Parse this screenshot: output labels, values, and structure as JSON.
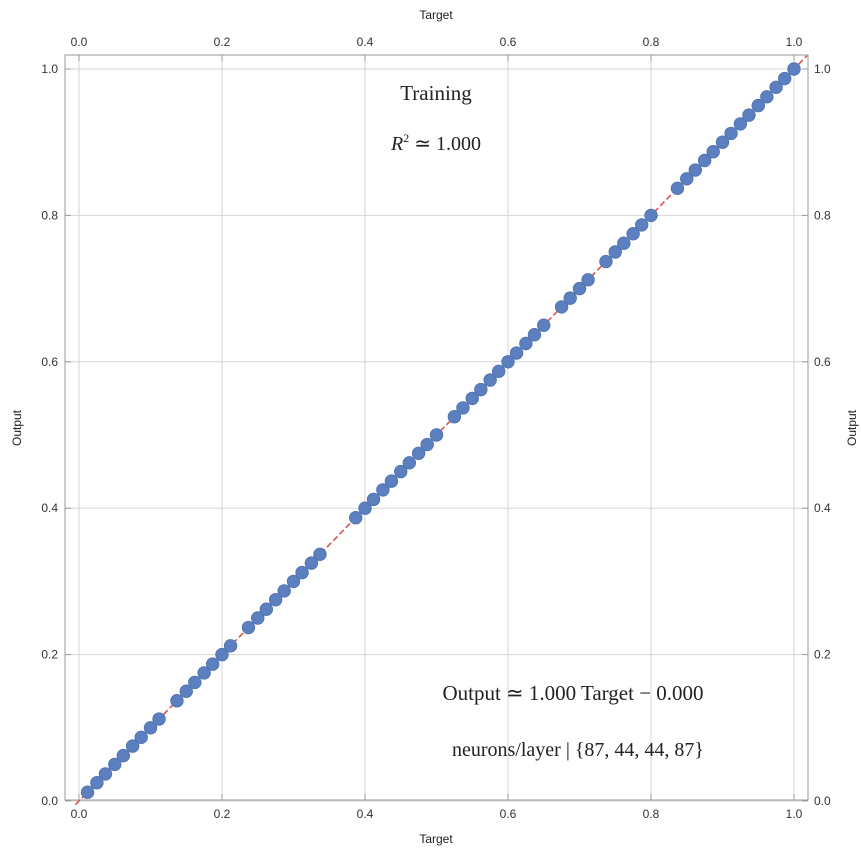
{
  "chart_data": {
    "type": "scatter",
    "xlabel": "Target",
    "ylabel": "Output",
    "xlim": [
      0.0,
      1.0
    ],
    "ylim": [
      0.0,
      1.0
    ],
    "x_ticks": [
      "0.0",
      "0.2",
      "0.4",
      "0.6",
      "0.8",
      "1.0"
    ],
    "y_ticks": [
      "0.0",
      "0.2",
      "0.4",
      "0.6",
      "0.8",
      "1.0"
    ],
    "grid": true,
    "annotations": {
      "title": "Training",
      "r2_symbol": "R",
      "r2_exp": "2",
      "r2_value": " ≃ 1.000",
      "fit": "Output ≃ 1.000 Target − 0.000",
      "layers": "neurons/layer | {87, 44, 44, 87}"
    },
    "colors": {
      "points": "#5b7fbf",
      "fit_line": "#d9534f"
    },
    "fit_line": {
      "slope": 1.0,
      "intercept": 0.0
    },
    "points": {
      "x": [
        0.012,
        0.025,
        0.037,
        0.05,
        0.062,
        0.075,
        0.087,
        0.1,
        0.112,
        0.137,
        0.15,
        0.162,
        0.175,
        0.187,
        0.2,
        0.212,
        0.237,
        0.25,
        0.262,
        0.275,
        0.287,
        0.3,
        0.312,
        0.325,
        0.337,
        0.387,
        0.4,
        0.412,
        0.425,
        0.437,
        0.45,
        0.462,
        0.475,
        0.487,
        0.5,
        0.525,
        0.537,
        0.55,
        0.562,
        0.575,
        0.587,
        0.6,
        0.612,
        0.625,
        0.637,
        0.65,
        0.675,
        0.687,
        0.7,
        0.712,
        0.737,
        0.75,
        0.762,
        0.775,
        0.787,
        0.8,
        0.837,
        0.85,
        0.862,
        0.875,
        0.887,
        0.9,
        0.912,
        0.925,
        0.937,
        0.95,
        0.962,
        0.975,
        0.987,
        1.0
      ],
      "y": [
        0.012,
        0.025,
        0.037,
        0.05,
        0.062,
        0.075,
        0.087,
        0.1,
        0.112,
        0.137,
        0.15,
        0.162,
        0.175,
        0.187,
        0.2,
        0.212,
        0.237,
        0.25,
        0.262,
        0.275,
        0.287,
        0.3,
        0.312,
        0.325,
        0.337,
        0.387,
        0.4,
        0.412,
        0.425,
        0.437,
        0.45,
        0.462,
        0.475,
        0.487,
        0.5,
        0.525,
        0.537,
        0.55,
        0.562,
        0.575,
        0.587,
        0.6,
        0.612,
        0.625,
        0.637,
        0.65,
        0.675,
        0.687,
        0.7,
        0.712,
        0.737,
        0.75,
        0.762,
        0.775,
        0.787,
        0.8,
        0.837,
        0.85,
        0.862,
        0.875,
        0.887,
        0.9,
        0.912,
        0.925,
        0.937,
        0.95,
        0.962,
        0.975,
        0.987,
        1.0
      ]
    }
  }
}
